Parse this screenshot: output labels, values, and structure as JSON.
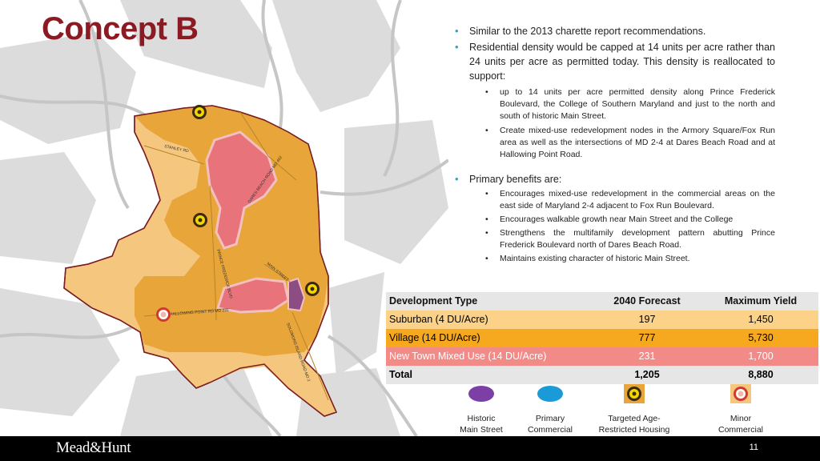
{
  "slide": {
    "title": "Concept B",
    "page_number": "11",
    "logo": "Mead&Hunt"
  },
  "bullets": [
    {
      "text": "Similar to the 2013 charette report recommendations.",
      "sub": []
    },
    {
      "text": "Residential density would be capped at 14 units per acre rather than 24 units per acre as permitted today. This density is reallocated to support:",
      "sub": [
        "up to 14 units per acre permitted density along Prince Frederick Boulevard, the College of Southern Maryland and just to the north and south of historic Main Street.",
        "Create mixed-use redevelopment nodes in the Armory Square/Fox Run area as well as the intersections of MD 2-4 at Dares Beach Road and at Hallowing Point Road."
      ]
    },
    {
      "text": "Primary benefits are:",
      "sub": [
        "Encourages mixed-use redevelopment in the commercial areas on the east side of Maryland 2-4 adjacent to Fox Run Boulevard.",
        "Encourages walkable growth near Main Street and the College",
        "Strengthens the multifamily development pattern abutting Prince Frederick Boulevard north of Dares Beach Road.",
        "Maintains existing character of historic Main Street."
      ]
    }
  ],
  "table": {
    "headers": [
      "Development Type",
      "2040 Forecast",
      "Maximum Yield"
    ],
    "rows": [
      {
        "type": "Suburban (4 DU/Acre)",
        "forecast": "197",
        "yield": "1,450",
        "color": "#fcd289"
      },
      {
        "type": "Village (14 DU/Acre)",
        "forecast": "777",
        "yield": "5,730",
        "color": "#f6a81e"
      },
      {
        "type": "New Town Mixed Use (14 DU/Acre)",
        "forecast": "231",
        "yield": "1,700",
        "color": "#f28b87"
      }
    ],
    "total": {
      "label": "Total",
      "forecast": "1,205",
      "yield": "8,880"
    }
  },
  "legend": [
    {
      "icon": "purple-oval-icon",
      "line1": "Historic",
      "line2": "Main Street",
      "color": "#7b3fa6"
    },
    {
      "icon": "blue-oval-icon",
      "line1": "Primary",
      "line2": "Commercial",
      "color": "#1a9ad9"
    },
    {
      "icon": "yellow-dot-icon",
      "line1": "Targeted Age-",
      "line2": "Restricted Housing",
      "color": "#f4d600"
    },
    {
      "icon": "red-ring-icon",
      "line1": "Minor",
      "line2": "Commercial",
      "color": "#d23a2e"
    }
  ],
  "map": {
    "road_labels": [
      "STANLEY RD",
      "DARES BEACH ROAD MD 402",
      "PRINCE FREDERICK BLVD",
      "MAIN STREET",
      "HALLOWING POINT RD MD 231",
      "SOLOMONS ISLAND ROAD MD 2"
    ],
    "colors": {
      "suburban": "#f5c77e",
      "village": "#e8a63a",
      "mixed_use": "#e9737a",
      "historic": "#8c4d83",
      "boundary": "#7a1c22",
      "background_area": "#d9d9d9"
    }
  }
}
